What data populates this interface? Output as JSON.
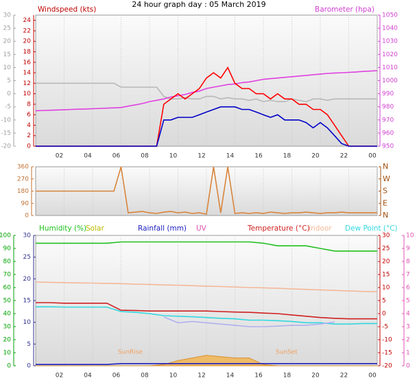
{
  "chart_data": [
    {
      "type": "line",
      "title": "24 hour graph day : 05 March 2019",
      "x": [
        0,
        0.5,
        1,
        1.5,
        2,
        2.5,
        3,
        3.5,
        4,
        4.5,
        5,
        5.5,
        6,
        6.5,
        7,
        7.5,
        8,
        8.5,
        9,
        9.5,
        10,
        10.5,
        11,
        11.5,
        12,
        12.5,
        13,
        13.5,
        14,
        14.5,
        15,
        15.5,
        16,
        16.5,
        17,
        17.5,
        18,
        18.5,
        19,
        19.5,
        20,
        20.5,
        21,
        21.5,
        22,
        22.5,
        23,
        23.5,
        24
      ],
      "xlim": [
        0,
        24
      ],
      "xticks": [
        {
          "value": 2,
          "label": "02"
        },
        {
          "value": 4,
          "label": "04"
        },
        {
          "value": 6,
          "label": "06"
        },
        {
          "value": 8,
          "label": "08"
        },
        10,
        12,
        14,
        16,
        18,
        20,
        22,
        {
          "value": 24,
          "label": "00"
        }
      ],
      "grid": true,
      "axes": [
        {
          "lim": [
            -20,
            30
          ],
          "ticks": [
            -20,
            -15,
            -10,
            -5,
            0,
            5,
            10,
            15,
            20,
            25,
            30
          ],
          "color": "#a0a0a0"
        },
        {
          "title": "Windspeed (kts)",
          "lim": [
            0,
            25
          ],
          "ticks": [
            0,
            2,
            4,
            6,
            8,
            10,
            12,
            14,
            16,
            18,
            20,
            22,
            24
          ],
          "color": "#c00000"
        },
        {
          "title": "Barometer (hpa)",
          "lim": [
            950,
            1050
          ],
          "ticks": [
            950,
            960,
            970,
            980,
            990,
            1000,
            1010,
            1020,
            1030,
            1040,
            1050
          ],
          "color": "#d040d0"
        }
      ],
      "series": [
        {
          "color": "#b8b8b8",
          "axis": 0,
          "values": [
            4,
            4,
            4,
            4,
            4,
            4,
            4,
            4,
            4,
            4,
            4,
            4,
            2.5,
            2.5,
            2.5,
            2.5,
            2.5,
            2.5,
            -1,
            -2,
            -2,
            -1.5,
            -2,
            -2,
            -1,
            -1,
            -2,
            -1.5,
            -2,
            -2,
            -2.5,
            -2,
            -3,
            -2.5,
            -3,
            -3,
            -2,
            -2.5,
            -3,
            -2,
            -2,
            -2.5,
            -2,
            -2,
            -2,
            -2,
            -2,
            -2,
            -2
          ]
        },
        {
          "color": "#e040e0",
          "axis": 2,
          "values": [
            977,
            977.2,
            977.4,
            977.6,
            977.8,
            978,
            978.2,
            978.4,
            978.6,
            978.8,
            979,
            979.2,
            979.5,
            980.5,
            981.5,
            982.5,
            984,
            985,
            986,
            987.5,
            988.5,
            989.5,
            991,
            992,
            994,
            995,
            996,
            997,
            997.5,
            998.5,
            999,
            1000,
            1001,
            1001.5,
            1002,
            1002.5,
            1003,
            1003.5,
            1004,
            1004.5,
            1005,
            1005.5,
            1005.8,
            1006,
            1006.3,
            1006.6,
            1007,
            1007.3,
            1007.6
          ]
        },
        {
          "color": "#ff0000",
          "axis": 1,
          "values": [
            0,
            0,
            0,
            0,
            0,
            0,
            0,
            0,
            0,
            0,
            0,
            0,
            0,
            0,
            0,
            0,
            0,
            0,
            8,
            9,
            10,
            9,
            10,
            11,
            13,
            14,
            13,
            15,
            12,
            11,
            11,
            10,
            10,
            9,
            10,
            9,
            9,
            8,
            8,
            7,
            7,
            6,
            4,
            2,
            0,
            0,
            0,
            0,
            0
          ]
        },
        {
          "color": "#0000c8",
          "axis": 1,
          "values": [
            0,
            0,
            0,
            0,
            0,
            0,
            0,
            0,
            0,
            0,
            0,
            0,
            0,
            0,
            0,
            0,
            0,
            0,
            5,
            5,
            5.5,
            5.5,
            5.5,
            6,
            6.5,
            7,
            7.5,
            7.5,
            7.5,
            7,
            7,
            6.5,
            6,
            5.5,
            6,
            5,
            5,
            5,
            4.5,
            3.5,
            4.5,
            3.5,
            2,
            0.5,
            0,
            0,
            0,
            0,
            0
          ]
        }
      ]
    },
    {
      "type": "line",
      "x": [
        0,
        0.5,
        1,
        1.5,
        2,
        2.5,
        3,
        3.5,
        4,
        4.5,
        5,
        5.5,
        6,
        6.5,
        7,
        7.5,
        8,
        8.5,
        9,
        9.5,
        10,
        10.5,
        11,
        11.5,
        12,
        12.5,
        13,
        13.5,
        14,
        14.5,
        15,
        15.5,
        16,
        16.5,
        17,
        17.5,
        18,
        18.5,
        19,
        19.5,
        20,
        20.5,
        21,
        21.5,
        22,
        22.5,
        23,
        23.5,
        24
      ],
      "xlim": [
        0,
        24
      ],
      "xticks": [
        2,
        4,
        6,
        8,
        10,
        12,
        14,
        16,
        18,
        20,
        22,
        24
      ],
      "grid": true,
      "axes": [
        {
          "lim": [
            0,
            360
          ],
          "ticks": [
            0,
            90,
            180,
            270,
            360
          ],
          "color": "#c07030"
        },
        {
          "lim": [
            0,
            360
          ],
          "ticks": [
            {
              "value": 0,
              "label": "N"
            },
            {
              "value": 90,
              "label": "E"
            },
            {
              "value": 180,
              "label": "S"
            },
            {
              "value": 270,
              "label": "W"
            },
            {
              "value": 360,
              "label": "N"
            }
          ],
          "color": "#a05010"
        }
      ],
      "series": [
        {
          "color": "#d8843a",
          "axis": 0,
          "values": [
            180,
            180,
            180,
            180,
            180,
            180,
            180,
            180,
            180,
            180,
            180,
            180,
            360,
            20,
            25,
            30,
            20,
            15,
            25,
            30,
            20,
            25,
            15,
            20,
            10,
            360,
            20,
            360,
            15,
            20,
            15,
            20,
            15,
            25,
            20,
            15,
            20,
            20,
            25,
            20,
            15,
            20,
            20,
            25,
            20,
            20,
            20,
            20,
            20
          ]
        }
      ]
    },
    {
      "type": "line",
      "x": [
        0,
        1,
        2,
        3,
        4,
        5,
        6,
        7,
        8,
        9,
        10,
        11,
        12,
        13,
        14,
        15,
        16,
        17,
        18,
        19,
        20,
        21,
        22,
        23,
        24
      ],
      "xlim": [
        0,
        24
      ],
      "xticks": [
        {
          "value": 2,
          "label": "02"
        },
        {
          "value": 4,
          "label": "04"
        },
        {
          "value": 6,
          "label": "06"
        },
        {
          "value": 8,
          "label": "08"
        },
        10,
        12,
        14,
        16,
        18,
        20,
        22,
        {
          "value": 24,
          "label": "00"
        }
      ],
      "grid": true,
      "axes": [
        {
          "lim": [
            0,
            100
          ],
          "ticks": [
            0,
            10,
            20,
            30,
            40,
            50,
            60,
            70,
            80,
            90,
            100
          ],
          "color": "#00a000"
        },
        {
          "lim": [
            0,
            30
          ],
          "ticks": [
            0,
            5,
            10,
            15,
            20,
            25,
            30
          ],
          "color": "#303090"
        },
        {
          "lim": [
            -20,
            30
          ],
          "ticks": [
            -20,
            -15,
            -10,
            -5,
            0,
            5,
            10,
            15,
            20,
            25,
            30
          ],
          "color": "#c00000"
        },
        {
          "title": "UV",
          "lim": [
            0,
            10
          ],
          "ticks": [
            0,
            1,
            2,
            3,
            4,
            5,
            6,
            7,
            8,
            9,
            10
          ],
          "color": "#e050b0"
        }
      ],
      "series": [
        {
          "name": "Humidity (%)",
          "color": "#20c020",
          "axis": 0,
          "values": [
            94,
            94,
            94,
            94,
            94,
            94,
            95,
            95,
            95,
            95,
            95,
            95,
            95,
            95,
            95,
            95,
            94,
            92,
            92,
            92,
            90,
            88,
            88,
            88,
            88
          ]
        },
        {
          "name": "Solar",
          "color": "#b8b800",
          "fill": "#f4b040",
          "axis": 0,
          "values": [
            0,
            0,
            0,
            0,
            0,
            0,
            0,
            0,
            0,
            1,
            4,
            6,
            8,
            7,
            6,
            6,
            1,
            0,
            0,
            0,
            0,
            0,
            0,
            0,
            0
          ]
        },
        {
          "name": "Rainfall (mm)",
          "color": "#2020c0",
          "axis": 1,
          "values": [
            0.3,
            0.3,
            0.3,
            0.3,
            0.3,
            0.3,
            0.5,
            0.5,
            0.5,
            0.5,
            0.5,
            0.5,
            0.5,
            0.5,
            0.5,
            0.5,
            0.5,
            0.5,
            0.5,
            0.5,
            0.5,
            0.5,
            0.5,
            0.5,
            0.5
          ]
        },
        {
          "name": "Temperature (°C)",
          "color": "#d02020",
          "axis": 2,
          "values": [
            4.2,
            4.2,
            4,
            4,
            4,
            4,
            1.3,
            1.2,
            1,
            1,
            1,
            1,
            1,
            0.8,
            0.6,
            0.5,
            0.2,
            0,
            -0.5,
            -1,
            -1.5,
            -1.8,
            -2,
            -2,
            -2
          ]
        },
        {
          "name": "Indoor",
          "color": "#f4b898",
          "axis": 2,
          "values": [
            12.1,
            12,
            11.9,
            11.8,
            11.7,
            11.6,
            11.5,
            11.3,
            11.2,
            11,
            10.9,
            10.7,
            10.5,
            10.4,
            10.2,
            10,
            9.9,
            9.7,
            9.5,
            9.3,
            9.1,
            8.9,
            8.7,
            8.5,
            8.4
          ]
        },
        {
          "name": "Dew Point (°C)",
          "color": "#30d8e0",
          "axis": 2,
          "values": [
            2.6,
            2.6,
            2.5,
            2.5,
            2.5,
            2.5,
            0.8,
            0.5,
            0,
            -0.8,
            -1,
            -1.2,
            -1.5,
            -1.8,
            -2,
            -2.5,
            -2.5,
            -2.7,
            -3,
            -3.5,
            -3.5,
            -4,
            -4,
            -3.8,
            -3.8
          ]
        },
        {
          "color": "#b0b0f0",
          "axis": 2,
          "values": [
            null,
            null,
            null,
            null,
            null,
            null,
            null,
            null,
            null,
            -1.3,
            -3.5,
            -3,
            -3.5,
            -4,
            -4.5,
            -5,
            -5,
            -4.8,
            -4.5,
            -4.5,
            -4,
            -3.2,
            null,
            null,
            null
          ]
        }
      ],
      "annotations": [
        "SunRise",
        "SunSet"
      ]
    }
  ]
}
